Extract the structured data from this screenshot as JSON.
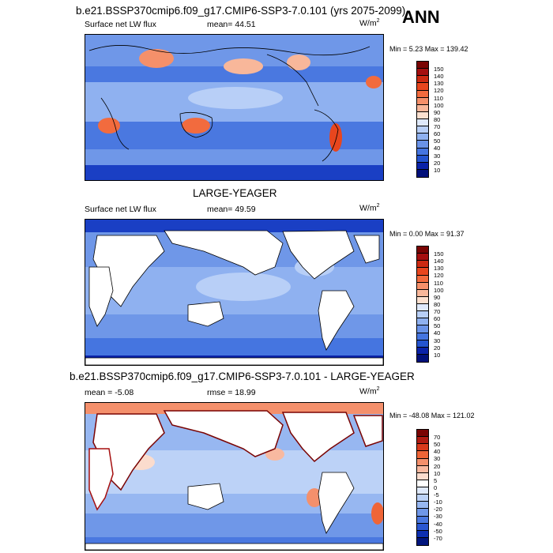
{
  "panel1": {
    "title": "b.e21.BSSP370cmip6.f09_g17.CMIP6-SSP3-7.0.101 (yrs 2075-2099)",
    "season": "ANN",
    "variable": "Surface net LW flux",
    "stat": "mean=  44.51",
    "units": "W/m",
    "units_sup": "2",
    "minmax": "Min =   5.23 Max = 139.42",
    "colorbar": [
      "150",
      "140",
      "130",
      "120",
      "110",
      "100",
      "90",
      "80",
      "70",
      "60",
      "50",
      "40",
      "30",
      "20",
      "10"
    ]
  },
  "panel2": {
    "title": "LARGE-YEAGER",
    "variable": "Surface net LW flux",
    "stat": "mean=  49.59",
    "units": "W/m",
    "units_sup": "2",
    "minmax": "Min =   0.00 Max =  91.37",
    "colorbar": [
      "150",
      "140",
      "130",
      "120",
      "110",
      "100",
      "90",
      "80",
      "70",
      "60",
      "50",
      "40",
      "30",
      "20",
      "10"
    ]
  },
  "panel3": {
    "title": "b.e21.BSSP370cmip6.f09_g17.CMIP6-SSP3-7.0.101 - LARGE-YEAGER",
    "stat_left": "mean =  -5.08",
    "stat": "rmse =  18.99",
    "units": "W/m",
    "units_sup": "2",
    "minmax": "Min = -48.08 Max = 121.02",
    "colorbar": [
      "70",
      "50",
      "40",
      "30",
      "20",
      "10",
      "5",
      "0",
      "-5",
      "-10",
      "-20",
      "-30",
      "-40",
      "-50",
      "-70"
    ]
  },
  "colors": {
    "seq": [
      "#7a0403",
      "#a50f0f",
      "#cc2a12",
      "#e8461e",
      "#f26b3e",
      "#f5906a",
      "#f8b79a",
      "#fbe0cf",
      "#dfe9fb",
      "#b8cff7",
      "#8fb1f0",
      "#6a93e8",
      "#4575e0",
      "#2454cf",
      "#0a22a8",
      "#01107a"
    ],
    "div": [
      "#7a0403",
      "#b01b12",
      "#d83a1c",
      "#ef6537",
      "#f4906c",
      "#f8b9a0",
      "#fbdccd",
      "#ffffff",
      "#dfe9fb",
      "#bcd2f7",
      "#97b7f1",
      "#6f97e8",
      "#4a78e0",
      "#2a57d1",
      "#0d2fb0",
      "#01157d"
    ]
  }
}
